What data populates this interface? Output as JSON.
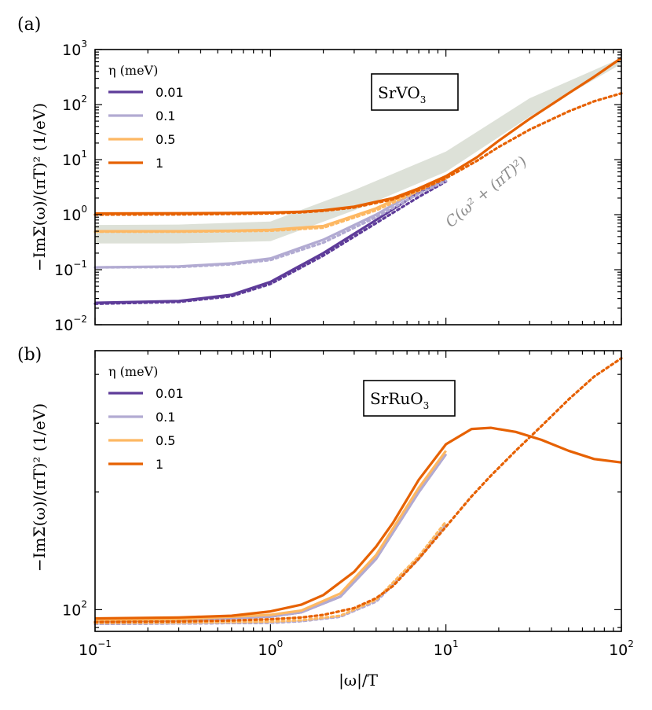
{
  "colors": {
    "eta_0_01": "#5e3c99",
    "eta_0_1": "#b2abd2",
    "eta_0_5": "#fdb863",
    "eta_1": "#e66101",
    "band": "#dde1d8",
    "annotation": "#8c8c8c"
  },
  "chart_data": [
    {
      "type": "line",
      "panel_label": "(a)",
      "material": "SrVO",
      "material_subscript": "3",
      "ylabel": "−ImΣ(ω)/(πT)² (1/eV)",
      "xscale": "log",
      "yscale": "log",
      "xlim": [
        0.1,
        100
      ],
      "ylim": [
        0.01,
        1000
      ],
      "yticks": [
        {
          "base": "10",
          "exp": "−2",
          "value": 0.01
        },
        {
          "base": "10",
          "exp": "−1",
          "value": 0.1
        },
        {
          "base": "10",
          "exp": "0",
          "value": 1
        },
        {
          "base": "10",
          "exp": "1",
          "value": 10
        },
        {
          "base": "10",
          "exp": "2",
          "value": 100
        },
        {
          "base": "10",
          "exp": "3",
          "value": 1000
        }
      ],
      "legend_title": "η (meV)",
      "legend_position": "top-left",
      "annotation": "C(ω² + (πT)²)",
      "band": {
        "x": [
          0.1,
          0.3,
          1,
          3,
          10,
          30,
          100
        ],
        "lower": [
          0.3,
          0.3,
          0.33,
          1.2,
          6,
          60,
          550
        ],
        "upper": [
          0.65,
          0.66,
          0.75,
          2.8,
          14,
          130,
          700
        ]
      },
      "series": [
        {
          "name": "0.01",
          "color_key": "eta_0_01",
          "x": [
            0.1,
            0.3,
            0.6,
            1,
            2,
            4,
            7,
            10
          ],
          "solid": [
            0.025,
            0.027,
            0.035,
            0.06,
            0.2,
            0.8,
            2.5,
            4.5
          ],
          "dotted": [
            0.024,
            0.026,
            0.033,
            0.055,
            0.18,
            0.7,
            2.1,
            4.0
          ]
        },
        {
          "name": "0.1",
          "color_key": "eta_0_1",
          "x": [
            0.1,
            0.3,
            0.6,
            1,
            2,
            4,
            7,
            10
          ],
          "solid": [
            0.11,
            0.115,
            0.13,
            0.16,
            0.35,
            1.0,
            2.8,
            4.6
          ],
          "dotted": [
            0.11,
            0.112,
            0.125,
            0.15,
            0.31,
            0.9,
            2.4,
            4.1
          ]
        },
        {
          "name": "0.5",
          "color_key": "eta_0_5",
          "x": [
            0.1,
            0.3,
            0.6,
            1,
            2,
            4,
            7,
            10
          ],
          "solid": [
            0.5,
            0.5,
            0.51,
            0.53,
            0.62,
            1.3,
            3.0,
            5.0
          ],
          "dotted": [
            0.49,
            0.49,
            0.5,
            0.51,
            0.58,
            1.2,
            2.7,
            4.6
          ]
        },
        {
          "name": "1",
          "color_key": "eta_1",
          "x": [
            0.1,
            0.3,
            0.6,
            1,
            1.5,
            2,
            3,
            5,
            7,
            10,
            15,
            20,
            30,
            50,
            70,
            100
          ],
          "solid": [
            1.05,
            1.06,
            1.07,
            1.09,
            1.13,
            1.2,
            1.4,
            2.0,
            3.0,
            5.0,
            11,
            22,
            55,
            160,
            320,
            700
          ],
          "dotted": [
            1.0,
            1.01,
            1.03,
            1.05,
            1.1,
            1.17,
            1.35,
            1.9,
            2.8,
            4.6,
            9.5,
            17,
            35,
            75,
            115,
            160
          ]
        }
      ]
    },
    {
      "type": "line",
      "panel_label": "(b)",
      "material": "SrRuO",
      "material_subscript": "3",
      "ylabel": "−ImΣ(ω)/(πT)² (1/eV)",
      "xlabel": "|ω|/T",
      "xscale": "log",
      "yscale": "log",
      "xlim": [
        0.1,
        100
      ],
      "ylim": [
        88,
        460
      ],
      "xticks": [
        {
          "base": "10",
          "exp": "−1",
          "value": 0.1
        },
        {
          "base": "10",
          "exp": "0",
          "value": 1
        },
        {
          "base": "10",
          "exp": "1",
          "value": 10
        },
        {
          "base": "10",
          "exp": "2",
          "value": 100
        }
      ],
      "yticks": [
        {
          "base": "10",
          "exp": "2",
          "value": 100
        }
      ],
      "legend_title": "η (meV)",
      "legend_position": "top-left",
      "series": [
        {
          "name": "0.01",
          "color_key": "eta_0_01",
          "x": [
            0.1,
            0.3,
            1,
            1.5,
            2.5,
            4,
            7,
            10
          ],
          "solid": [
            93.5,
            94,
            96,
            98.5,
            108,
            135,
            200,
            250
          ],
          "dotted": [
            92,
            92.2,
            92.6,
            93.5,
            96,
            105,
            135,
            165
          ]
        },
        {
          "name": "0.1",
          "color_key": "eta_0_1",
          "x": [
            0.1,
            0.3,
            1,
            1.5,
            2.5,
            4,
            7,
            10
          ],
          "solid": [
            93.5,
            94,
            96,
            98.5,
            108,
            135,
            200,
            250
          ],
          "dotted": [
            92,
            92.2,
            92.6,
            93.5,
            96,
            105,
            135,
            165
          ]
        },
        {
          "name": "0.5",
          "color_key": "eta_0_5",
          "x": [
            0.1,
            0.3,
            1,
            1.5,
            2.5,
            4,
            7,
            10
          ],
          "solid": [
            94,
            94.5,
            97,
            99.5,
            110,
            138,
            205,
            255
          ],
          "dotted": [
            92.5,
            92.7,
            93.2,
            94,
            96.5,
            106,
            137,
            168
          ]
        },
        {
          "name": "1",
          "color_key": "eta_1",
          "x": [
            0.1,
            0.3,
            0.6,
            1,
            1.5,
            2,
            3,
            4,
            5,
            7,
            10,
            14,
            18,
            25,
            35,
            50,
            70,
            100
          ],
          "solid": [
            95,
            95.5,
            96.5,
            99,
            103,
            109,
            125,
            145,
            167,
            215,
            265,
            290,
            292,
            285,
            272,
            255,
            243,
            238
          ],
          "dotted": [
            93,
            93.3,
            93.8,
            94.5,
            95.5,
            97,
            101,
            107,
            115,
            135,
            163,
            195,
            220,
            255,
            295,
            345,
            395,
            440
          ]
        }
      ]
    }
  ]
}
